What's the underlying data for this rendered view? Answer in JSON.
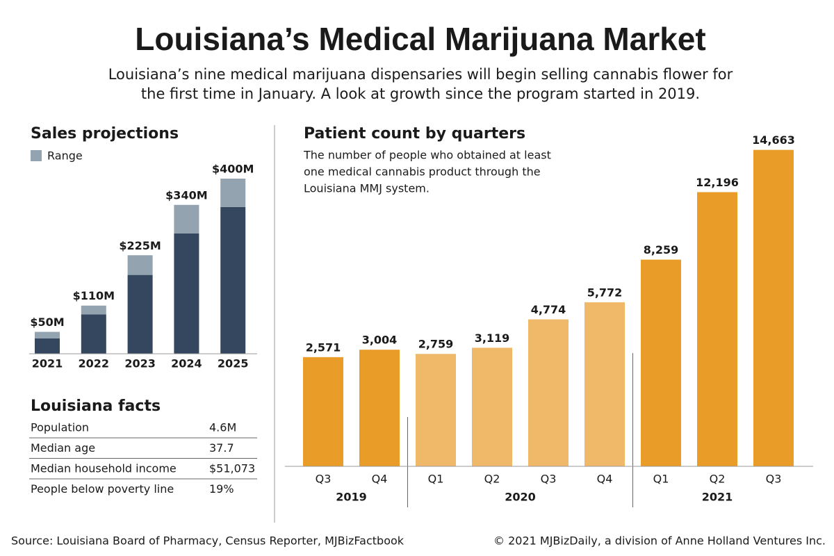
{
  "title": "Louisiana’s Medical Marijuana Market",
  "subtitle": [
    "Louisiana’s nine medical marijuana dispensaries will begin selling cannabis flower for",
    "the first time in January. A look at growth since the program started in 2019."
  ],
  "chart_data": [
    {
      "type": "range-bar",
      "title": "Sales projections",
      "categories": [
        "2021",
        "2022",
        "2023",
        "2024",
        "2025"
      ],
      "base_color": "#34475e",
      "series": [
        {
          "name": "Range",
          "color": "#93a4b0",
          "low": [
            35,
            90,
            180,
            275,
            335
          ],
          "high": [
            50,
            110,
            225,
            340,
            400
          ],
          "value_labels": [
            "$50M",
            "$110M",
            "$225M",
            "$340M",
            "$400M"
          ]
        }
      ]
    },
    {
      "type": "grouped-bar",
      "title": "Patient count by quarters",
      "subtitle": [
        "The number of people who obtained at least",
        "one medical cannabis product through the",
        "Louisiana MMJ system."
      ],
      "ylim": [
        -3800,
        15500
      ],
      "groups": [
        {
          "label": "2019",
          "color": "#e99c27",
          "categories": [
            "Q3",
            "Q4"
          ],
          "values": [
            2571,
            3004
          ],
          "value_labels": [
            "2,571",
            "3,004"
          ]
        },
        {
          "label": "2020",
          "color": "#f0b96a",
          "categories": [
            "Q1",
            "Q2",
            "Q3",
            "Q4"
          ],
          "values": [
            2759,
            3119,
            4774,
            5772
          ],
          "value_labels": [
            "2,759",
            "3,119",
            "4,774",
            "5,772"
          ]
        },
        {
          "label": "2021",
          "color": "#e99c27",
          "categories": [
            "Q1",
            "Q2",
            "Q3"
          ],
          "values": [
            8259,
            12196,
            14663
          ],
          "value_labels": [
            "8,259",
            "12,196",
            "14,663"
          ]
        }
      ]
    }
  ],
  "facts": {
    "title": "Louisiana facts",
    "rows": [
      [
        "Population",
        "4.6M"
      ],
      [
        "Median age",
        "37.7"
      ],
      [
        "Median household income",
        "$51,073"
      ],
      [
        "People below poverty line",
        "19%"
      ]
    ]
  },
  "footer": {
    "source": "Source: Louisiana Board of Pharmacy, Census Reporter, MJBizFactbook",
    "credit": "© 2021 MJBizDaily, a division of Anne Holland Ventures Inc."
  }
}
